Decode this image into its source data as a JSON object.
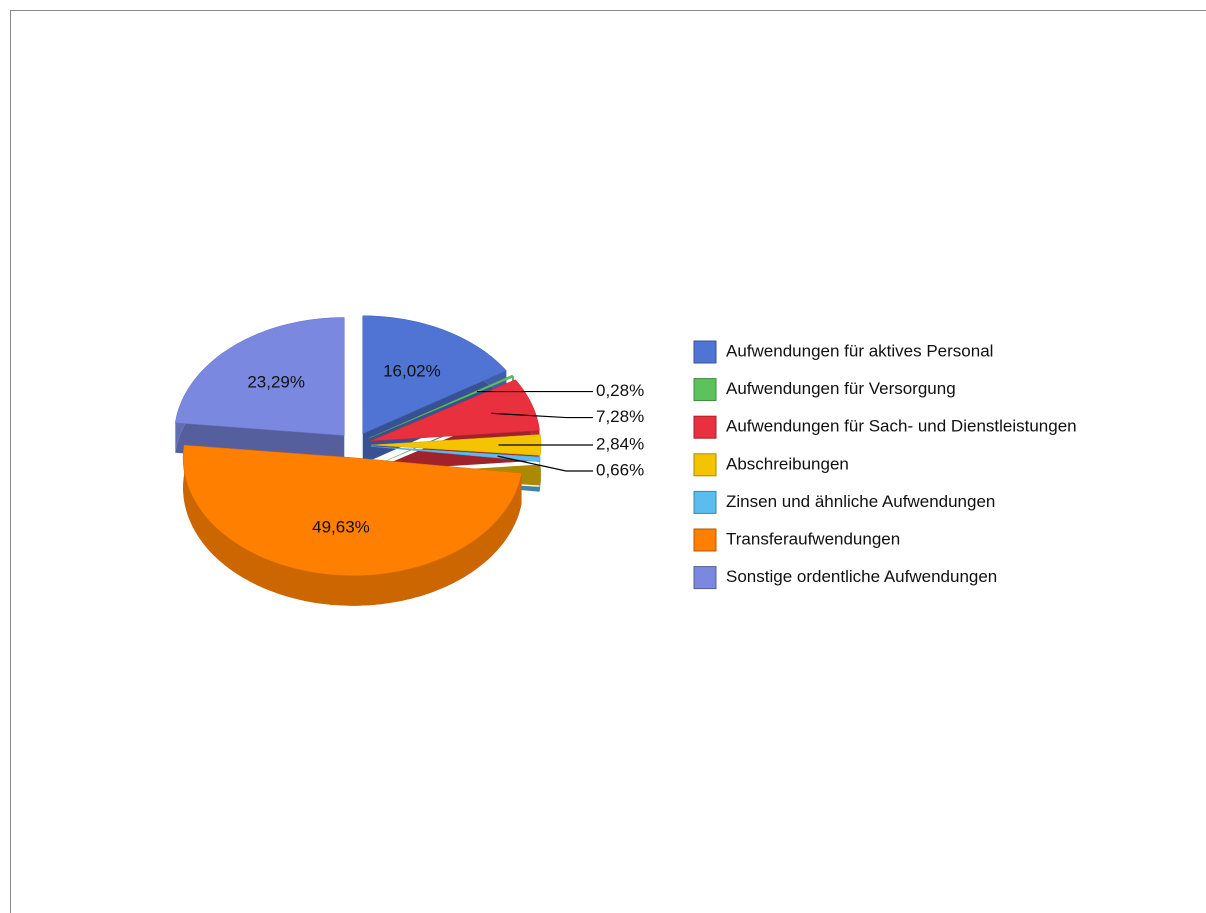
{
  "chart_data": {
    "type": "pie",
    "categories": [
      "Aufwendungen für aktives Personal",
      "Aufwendungen für Versorgung",
      "Aufwendungen für Sach- und Dienstleistungen",
      "Abschreibungen",
      "Zinsen und ähnliche Aufwendungen",
      "Transferaufwendungen",
      "Sonstige ordentliche Aufwendungen"
    ],
    "values": [
      16.02,
      0.28,
      7.28,
      2.84,
      0.66,
      49.63,
      23.29
    ],
    "value_labels": [
      "16,02%",
      "0,28%",
      "7,28%",
      "2,84%",
      "0,66%",
      "49,63%",
      "23,29%"
    ],
    "colors": [
      "#4f74d3",
      "#5cc25c",
      "#e8303f",
      "#f5c400",
      "#5bbcf0",
      "#ff7f00",
      "#7b88e0"
    ],
    "legend": "right"
  }
}
